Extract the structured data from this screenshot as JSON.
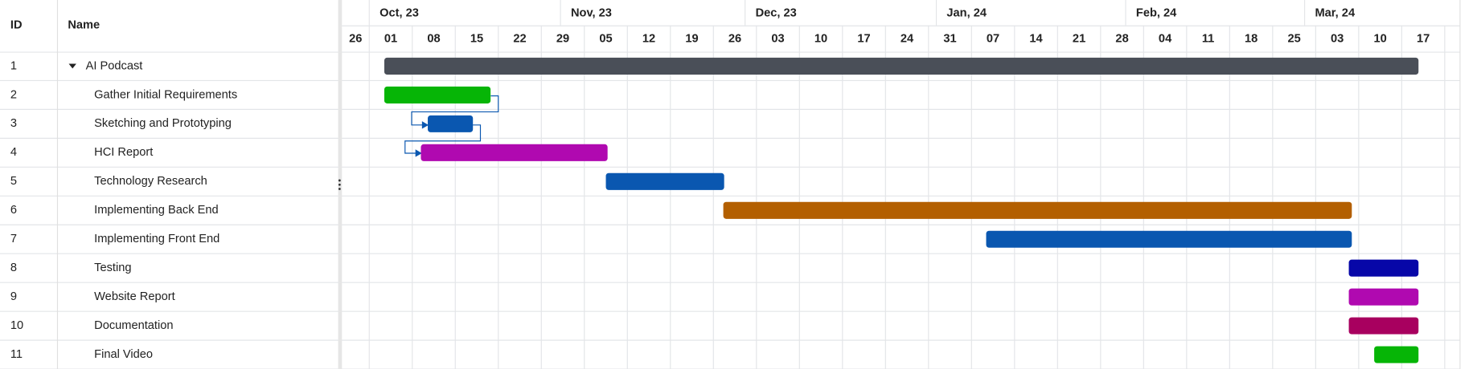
{
  "grid": {
    "columns": [
      "ID",
      "Name"
    ]
  },
  "timeline": {
    "months": [
      "Oct, 23",
      "Nov, 23",
      "Dec, 23",
      "Jan, 24",
      "Feb, 24",
      "Mar, 24"
    ],
    "weeks": [
      "26",
      "01",
      "08",
      "15",
      "22",
      "29",
      "05",
      "12",
      "19",
      "26",
      "03",
      "10",
      "17",
      "24",
      "31",
      "07",
      "14",
      "21",
      "28",
      "04",
      "11",
      "18",
      "25",
      "03",
      "10",
      "17"
    ]
  },
  "tasks": [
    {
      "id": "1",
      "name": "AI Podcast",
      "start": 1.35,
      "end": 25.39,
      "color": "#4a4f58"
    },
    {
      "id": "2",
      "name": "Gather Initial Requirements",
      "start": 1.35,
      "end": 3.82,
      "color": "#06b506"
    },
    {
      "id": "3",
      "name": "Sketching and Prototyping",
      "start": 2.36,
      "end": 3.41,
      "color": "#0a57b0"
    },
    {
      "id": "4",
      "name": "HCI Report",
      "start": 2.2,
      "end": 6.54,
      "color": "#b009b0"
    },
    {
      "id": "5",
      "name": "Technology Research",
      "start": 6.5,
      "end": 9.25,
      "color": "#0a57b0"
    },
    {
      "id": "6",
      "name": "Implementing Back End",
      "start": 9.23,
      "end": 23.84,
      "color": "#b35f00"
    },
    {
      "id": "7",
      "name": "Implementing Front End",
      "start": 15.34,
      "end": 23.84,
      "color": "#0a57b0"
    },
    {
      "id": "8",
      "name": "Testing",
      "start": 23.77,
      "end": 25.39,
      "color": "#0707a8"
    },
    {
      "id": "9",
      "name": "Website Report",
      "start": 23.77,
      "end": 25.39,
      "color": "#b009b0"
    },
    {
      "id": "10",
      "name": "Documentation",
      "start": 23.77,
      "end": 25.39,
      "color": "#a8005f"
    },
    {
      "id": "11",
      "name": "Final Video",
      "start": 24.36,
      "end": 25.39,
      "color": "#06b506"
    }
  ]
}
